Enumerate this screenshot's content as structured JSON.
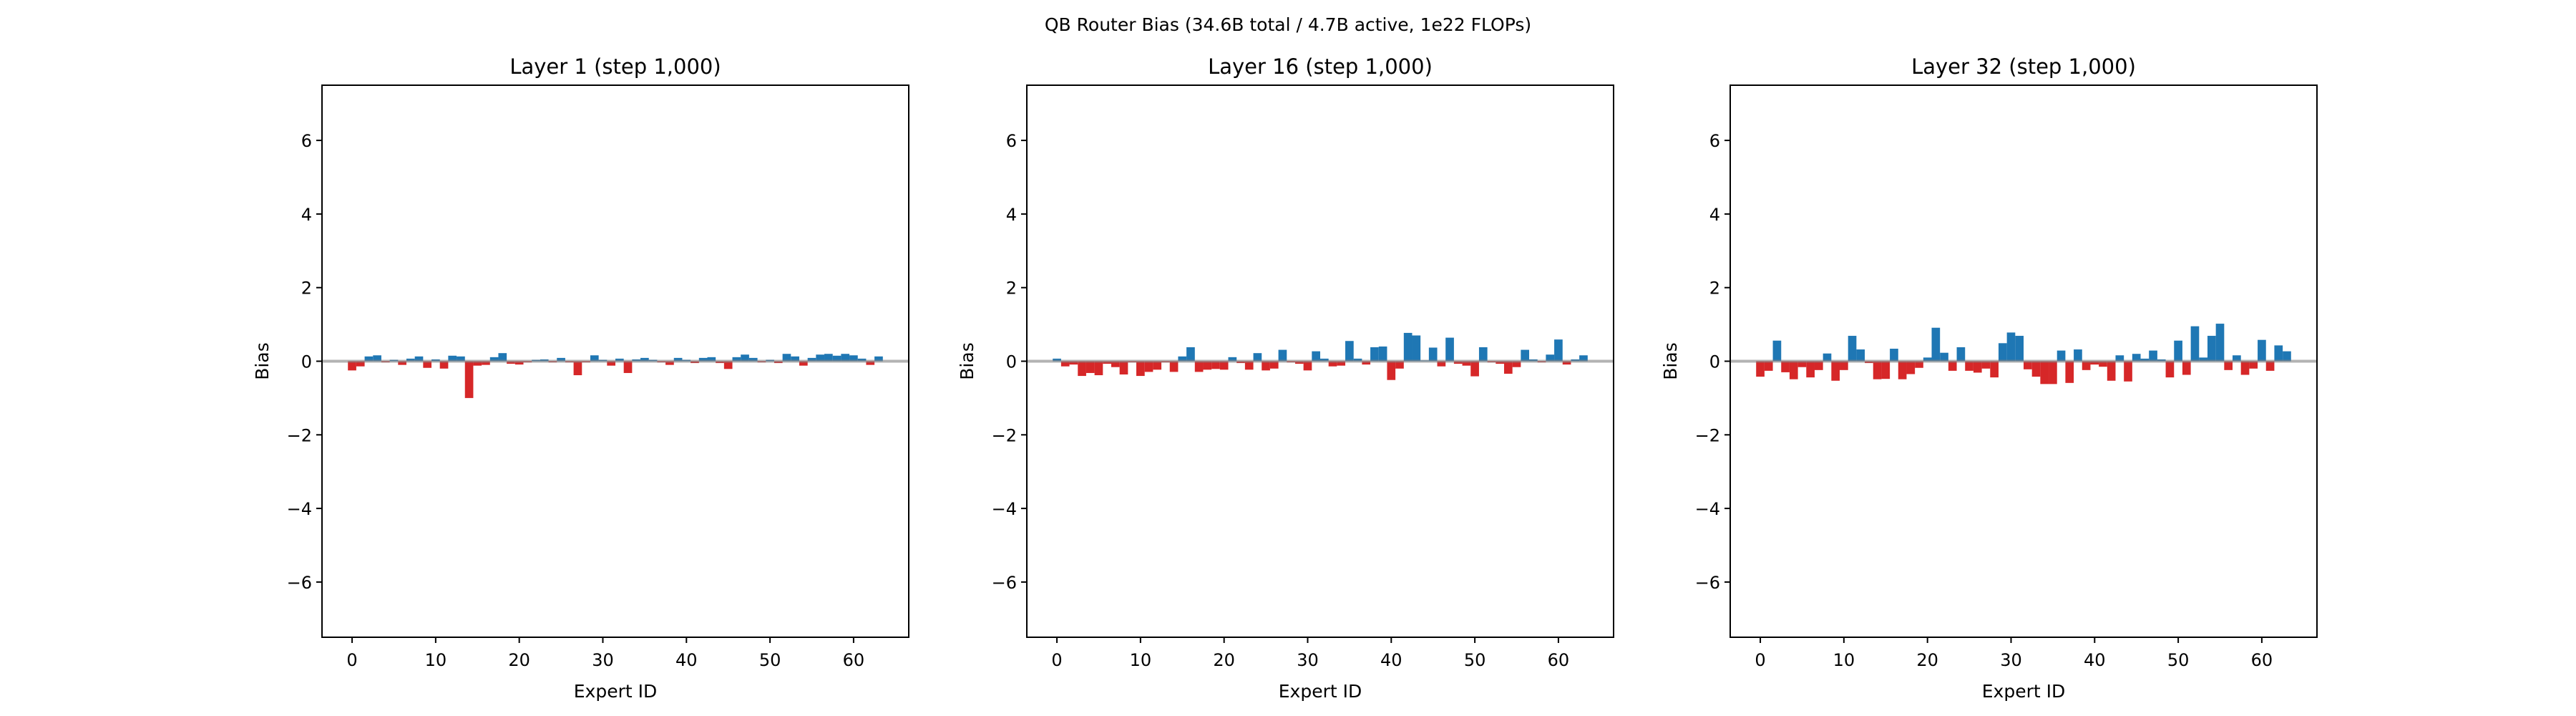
{
  "chart_data": {
    "suptitle": "QB Router Bias (34.6B total / 4.7B active, 1e22 FLOPs)",
    "type": "bar",
    "colors": {
      "positive": "#1f77b4",
      "negative": "#d62728",
      "zero_line": "#808080"
    },
    "grid": false,
    "panels": [
      {
        "title": "Layer 1 (step 1,000)",
        "xlabel": "Expert ID",
        "ylabel": "Bias",
        "xlim": [
          -3.6,
          66.6
        ],
        "ylim": [
          -7.5,
          7.5
        ],
        "xticks": [
          0,
          10,
          20,
          30,
          40,
          50,
          60
        ],
        "yticks": [
          -6,
          -4,
          -2,
          0,
          2,
          4,
          6
        ],
        "values": [
          -0.25,
          -0.14,
          0.13,
          0.16,
          -0.03,
          0.04,
          -0.1,
          0.07,
          0.13,
          -0.18,
          0.05,
          -0.2,
          0.15,
          0.13,
          -1.0,
          -0.12,
          -0.1,
          0.11,
          0.22,
          -0.07,
          -0.09,
          -0.03,
          0.04,
          0.05,
          -0.03,
          0.09,
          -0.03,
          -0.38,
          -0.03,
          0.16,
          0.04,
          -0.12,
          0.07,
          -0.32,
          0.05,
          0.09,
          0.04,
          -0.03,
          -0.1,
          0.09,
          0.04,
          -0.05,
          0.09,
          0.11,
          -0.05,
          -0.21,
          0.11,
          0.18,
          0.09,
          -0.03,
          0.04,
          -0.05,
          0.2,
          0.13,
          -0.12,
          0.09,
          0.18,
          0.2,
          0.15,
          0.2,
          0.16,
          0.07,
          -0.1,
          0.13
        ]
      },
      {
        "title": "Layer 16 (step 1,000)",
        "xlabel": "Expert ID",
        "ylabel": "Bias",
        "xlim": [
          -3.6,
          66.6
        ],
        "ylim": [
          -7.5,
          7.5
        ],
        "xticks": [
          0,
          10,
          20,
          30,
          40,
          50,
          60
        ],
        "yticks": [
          -6,
          -4,
          -2,
          0,
          2,
          4,
          6
        ],
        "values": [
          0.07,
          -0.14,
          -0.09,
          -0.4,
          -0.32,
          -0.38,
          -0.07,
          -0.16,
          -0.36,
          -0.03,
          -0.4,
          -0.29,
          -0.23,
          -0.03,
          -0.29,
          0.13,
          0.38,
          -0.29,
          -0.23,
          -0.21,
          -0.23,
          0.11,
          -0.05,
          -0.23,
          0.22,
          -0.25,
          -0.2,
          0.31,
          -0.03,
          -0.07,
          -0.25,
          0.27,
          0.07,
          -0.14,
          -0.12,
          0.55,
          0.07,
          -0.09,
          0.38,
          0.4,
          -0.51,
          -0.2,
          0.77,
          0.7,
          0.02,
          0.37,
          -0.14,
          0.64,
          -0.07,
          -0.12,
          -0.41,
          0.38,
          -0.03,
          -0.07,
          -0.34,
          -0.16,
          0.31,
          0.05,
          -0.03,
          0.18,
          0.59,
          -0.09,
          0.05,
          0.16
        ]
      },
      {
        "title": "Layer 32 (step 1,000)",
        "xlabel": "Expert ID",
        "ylabel": "Bias",
        "xlim": [
          -3.6,
          66.6
        ],
        "ylim": [
          -7.5,
          7.5
        ],
        "xticks": [
          0,
          10,
          20,
          30,
          40,
          50,
          60
        ],
        "yticks": [
          -6,
          -4,
          -2,
          0,
          2,
          4,
          6
        ],
        "values": [
          -0.42,
          -0.26,
          0.56,
          -0.3,
          -0.49,
          -0.16,
          -0.44,
          -0.24,
          0.21,
          -0.53,
          -0.24,
          0.69,
          0.32,
          -0.05,
          -0.49,
          -0.48,
          0.34,
          -0.49,
          -0.35,
          -0.18,
          0.1,
          0.91,
          0.23,
          -0.26,
          0.38,
          -0.26,
          -0.31,
          -0.2,
          -0.44,
          0.49,
          0.78,
          0.69,
          -0.22,
          -0.42,
          -0.62,
          -0.62,
          0.29,
          -0.59,
          0.32,
          -0.24,
          -0.09,
          -0.15,
          -0.53,
          0.16,
          -0.55,
          0.2,
          0.07,
          0.29,
          0.05,
          -0.44,
          0.56,
          -0.37,
          0.95,
          0.1,
          0.69,
          1.02,
          -0.24,
          0.16,
          -0.37,
          -0.2,
          0.58,
          -0.26,
          0.43,
          0.27
        ]
      }
    ]
  }
}
